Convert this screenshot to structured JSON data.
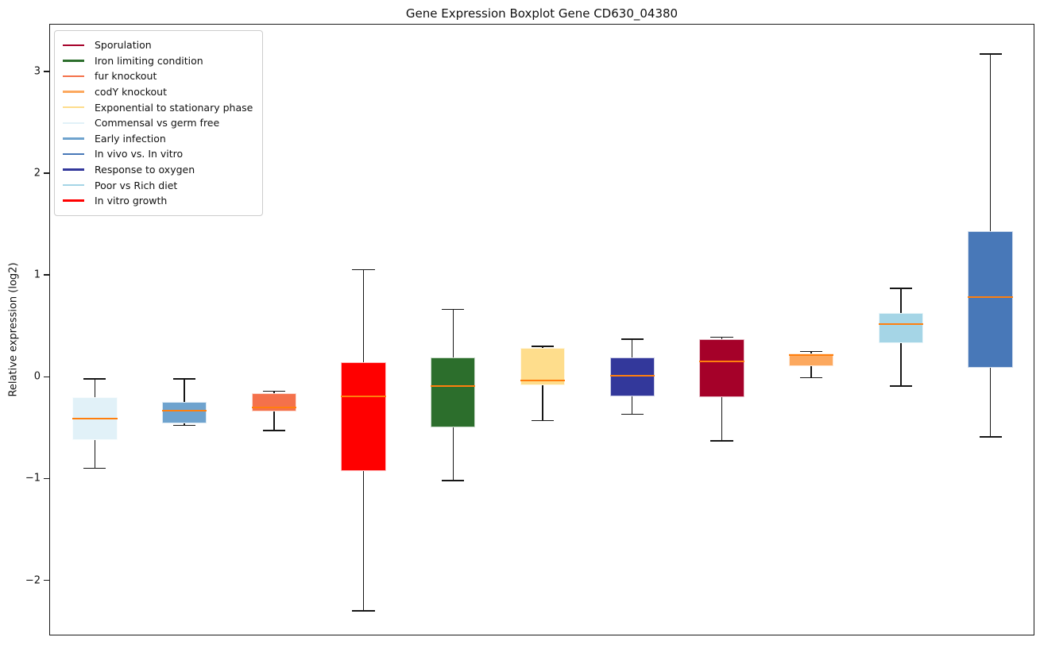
{
  "title": "Gene Expression Boxplot Gene CD630_04380",
  "chart_data": {
    "type": "boxplot",
    "title": "Gene Expression Boxplot Gene CD630_04380",
    "xlabel": "",
    "ylabel": "Relative expression (log2)",
    "ylim": [
      -2.55,
      3.46
    ],
    "grid": false,
    "legend_position": "upper left",
    "median_color": "#ff7f0e",
    "whisker_color": "#161616",
    "yticks": [
      {
        "value": 3,
        "label": "3"
      },
      {
        "value": 2,
        "label": "2"
      },
      {
        "value": 1,
        "label": "1"
      },
      {
        "value": 0,
        "label": "0"
      },
      {
        "value": -1,
        "label": "−1"
      },
      {
        "value": -2,
        "label": "−2"
      }
    ],
    "legend": [
      {
        "label": "Sporulation",
        "color": "#A50129"
      },
      {
        "label": "Iron limiting condition",
        "color": "#2C6E2C"
      },
      {
        "label": "fur knockout",
        "color": "#F4714B"
      },
      {
        "label": "codY knockout",
        "color": "#FCA85E"
      },
      {
        "label": "Exponential to stationary phase",
        "color": "#FEDD8C"
      },
      {
        "label": "Commensal vs germ free",
        "color": "#E1F1F8"
      },
      {
        "label": "Early infection",
        "color": "#6FA3CE"
      },
      {
        "label": "In vivo vs. In vitro",
        "color": "#4878B8"
      },
      {
        "label": "Response to oxygen",
        "color": "#33389B"
      },
      {
        "label": "Poor vs Rich diet",
        "color": "#A5D5E6"
      },
      {
        "label": "In vitro growth",
        "color": "#FF0000"
      }
    ],
    "series": [
      {
        "label": "Commensal vs germ free",
        "color": "#E1F1F8",
        "whisker_low": -0.9,
        "q1": -0.62,
        "median": -0.41,
        "q3": -0.2,
        "whisker_high": -0.02
      },
      {
        "label": "Early infection",
        "color": "#6FA3CE",
        "whisker_low": -0.48,
        "q1": -0.46,
        "median": -0.33,
        "q3": -0.25,
        "whisker_high": -0.02
      },
      {
        "label": "fur knockout",
        "color": "#F4714B",
        "whisker_low": -0.53,
        "q1": -0.34,
        "median": -0.3,
        "q3": -0.16,
        "whisker_high": -0.14
      },
      {
        "label": "In vitro growth",
        "color": "#FF0000",
        "whisker_low": -2.3,
        "q1": -0.93,
        "median": -0.19,
        "q3": 0.14,
        "whisker_high": 1.05
      },
      {
        "label": "Iron limiting condition",
        "color": "#2C6E2C",
        "whisker_low": -1.02,
        "q1": -0.5,
        "median": -0.09,
        "q3": 0.19,
        "whisker_high": 0.66
      },
      {
        "label": "Exponential to stationary phase",
        "color": "#FEDD8C",
        "whisker_low": -0.43,
        "q1": -0.08,
        "median": -0.04,
        "q3": 0.28,
        "whisker_high": 0.3
      },
      {
        "label": "Response to oxygen",
        "color": "#33389B",
        "whisker_low": -0.37,
        "q1": -0.19,
        "median": 0.01,
        "q3": 0.19,
        "whisker_high": 0.37
      },
      {
        "label": "Sporulation",
        "color": "#A50129",
        "whisker_low": -0.63,
        "q1": -0.2,
        "median": 0.15,
        "q3": 0.37,
        "whisker_high": 0.39
      },
      {
        "label": "codY knockout",
        "color": "#FCA85E",
        "whisker_low": -0.01,
        "q1": 0.1,
        "median": 0.21,
        "q3": 0.23,
        "whisker_high": 0.25
      },
      {
        "label": "Poor vs Rich diet",
        "color": "#A5D5E6",
        "whisker_low": -0.09,
        "q1": 0.33,
        "median": 0.52,
        "q3": 0.63,
        "whisker_high": 0.87
      },
      {
        "label": "In vivo vs. In vitro",
        "color": "#4878B8",
        "whisker_low": -0.59,
        "q1": 0.09,
        "median": 0.78,
        "q3": 1.43,
        "whisker_high": 3.17
      }
    ]
  }
}
